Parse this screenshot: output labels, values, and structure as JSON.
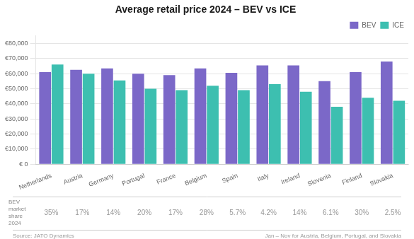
{
  "chart_data": {
    "type": "bar",
    "title": "Average retail price 2024 – BEV vs ICE",
    "categories": [
      "Netherlands",
      "Austria",
      "Germany",
      "Portugal",
      "France",
      "Belgium",
      "Spain",
      "Italy",
      "Ireland",
      "Slovenia",
      "Finland",
      "Slovakia"
    ],
    "series": [
      {
        "name": "BEV",
        "color": "#7B68C8",
        "values": [
          61000,
          62500,
          63500,
          60000,
          59000,
          63500,
          60500,
          65500,
          65500,
          55000,
          61000,
          68000
        ]
      },
      {
        "name": "ICE",
        "color": "#3DBFB0",
        "values": [
          66000,
          60000,
          55500,
          50000,
          49000,
          52000,
          49000,
          53000,
          48000,
          38000,
          44000,
          42000
        ]
      }
    ],
    "ylim": [
      0,
      85000
    ],
    "yticks": [
      {
        "value": 0,
        "label": "€ 0"
      },
      {
        "value": 10000,
        "label": "€10,000"
      },
      {
        "value": 20000,
        "label": "€20,000"
      },
      {
        "value": 30000,
        "label": "€30,000"
      },
      {
        "value": 40000,
        "label": "€40,000"
      },
      {
        "value": 50000,
        "label": "€50,000"
      },
      {
        "value": 60000,
        "label": "€60,000"
      },
      {
        "value": 70000,
        "label": "€70,000"
      },
      {
        "value": 80000,
        "label": "€80,000"
      }
    ],
    "grid": true,
    "legend": "upper right",
    "market_share": {
      "label": "BEV\nmarket\nshare\n2024",
      "values": [
        35,
        17,
        14,
        20,
        17,
        28,
        5.7,
        4.2,
        14,
        6.1,
        30,
        2.5
      ],
      "value_labels": [
        "35%",
        "17%",
        "14%",
        "20%",
        "17%",
        "28%",
        "5.7%",
        "4.2%",
        "14%",
        "6.1%",
        "30%",
        "2.5%"
      ]
    },
    "source": "Source: JATO Dynamics",
    "note": "Jan – Nov for Austria, Belgium, Portugal, and Slovakia"
  }
}
